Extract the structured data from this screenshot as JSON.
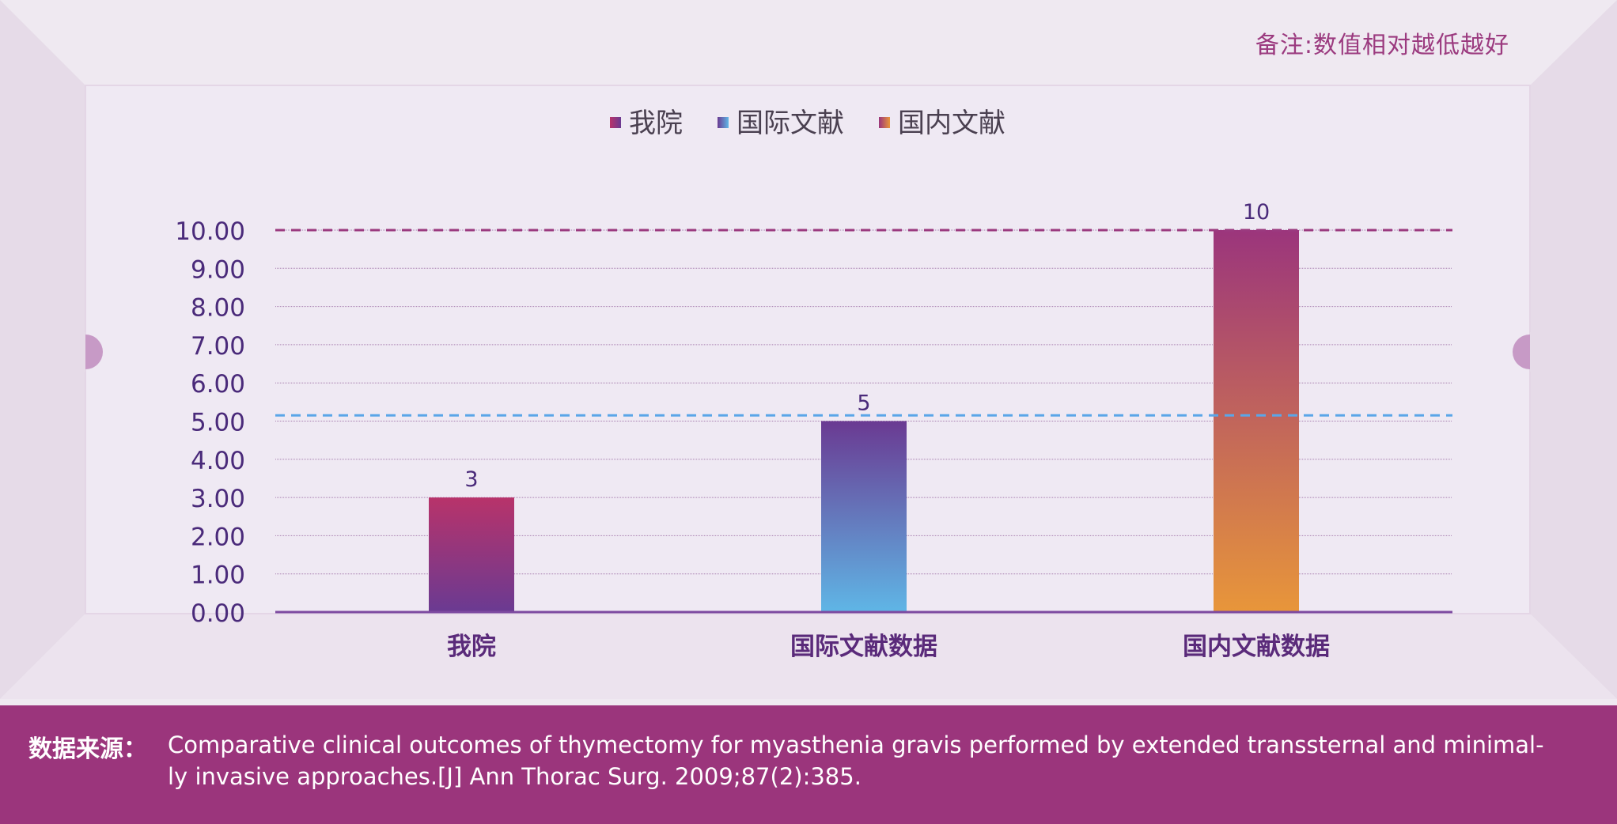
{
  "note": "备注:数值相对越低越好",
  "chart_data": {
    "type": "bar",
    "categories": [
      "我院",
      "国际文献数据",
      "国内文献数据"
    ],
    "values": [
      3,
      5,
      10
    ],
    "data_labels": [
      "3",
      "5",
      "10"
    ],
    "legend": [
      "我院",
      "国际文献",
      "国内文献"
    ],
    "legend_position": "top-center",
    "ylim": [
      0,
      10
    ],
    "yticks": [
      "0.00",
      "1.00",
      "2.00",
      "3.00",
      "4.00",
      "5.00",
      "6.00",
      "7.00",
      "8.00",
      "9.00",
      "10.00"
    ],
    "reference_lines": [
      {
        "value": 10,
        "color": "#9b3a7f",
        "style": "dashed"
      },
      {
        "value": 5.15,
        "color": "#5aa6e8",
        "style": "dashed"
      }
    ],
    "grid": true,
    "series_gradients": [
      {
        "top": "#b8336a",
        "bottom": "#6a3a92"
      },
      {
        "top": "#6a3a92",
        "bottom": "#5fb6e6"
      },
      {
        "top": "#9b357c",
        "bottom": "#e8963a"
      }
    ],
    "legend_colors": [
      {
        "a": "#b8336a",
        "b": "#6a3a92"
      },
      {
        "a": "#6a3a92",
        "b": "#5fb6e6"
      },
      {
        "a": "#9b357c",
        "b": "#e8963a"
      }
    ],
    "axis_color": "#7d4aa0",
    "tick_color": "#4a2a7a",
    "grid_color": "#a77fb0"
  },
  "footer": {
    "label": "数据来源：",
    "line1": "Comparative clinical outcomes of thymectomy for myasthenia gravis performed by extended transsternal and minimal-",
    "line2": "ly invasive approaches.[J] Ann Thorac Surg. 2009;87(2):385."
  }
}
